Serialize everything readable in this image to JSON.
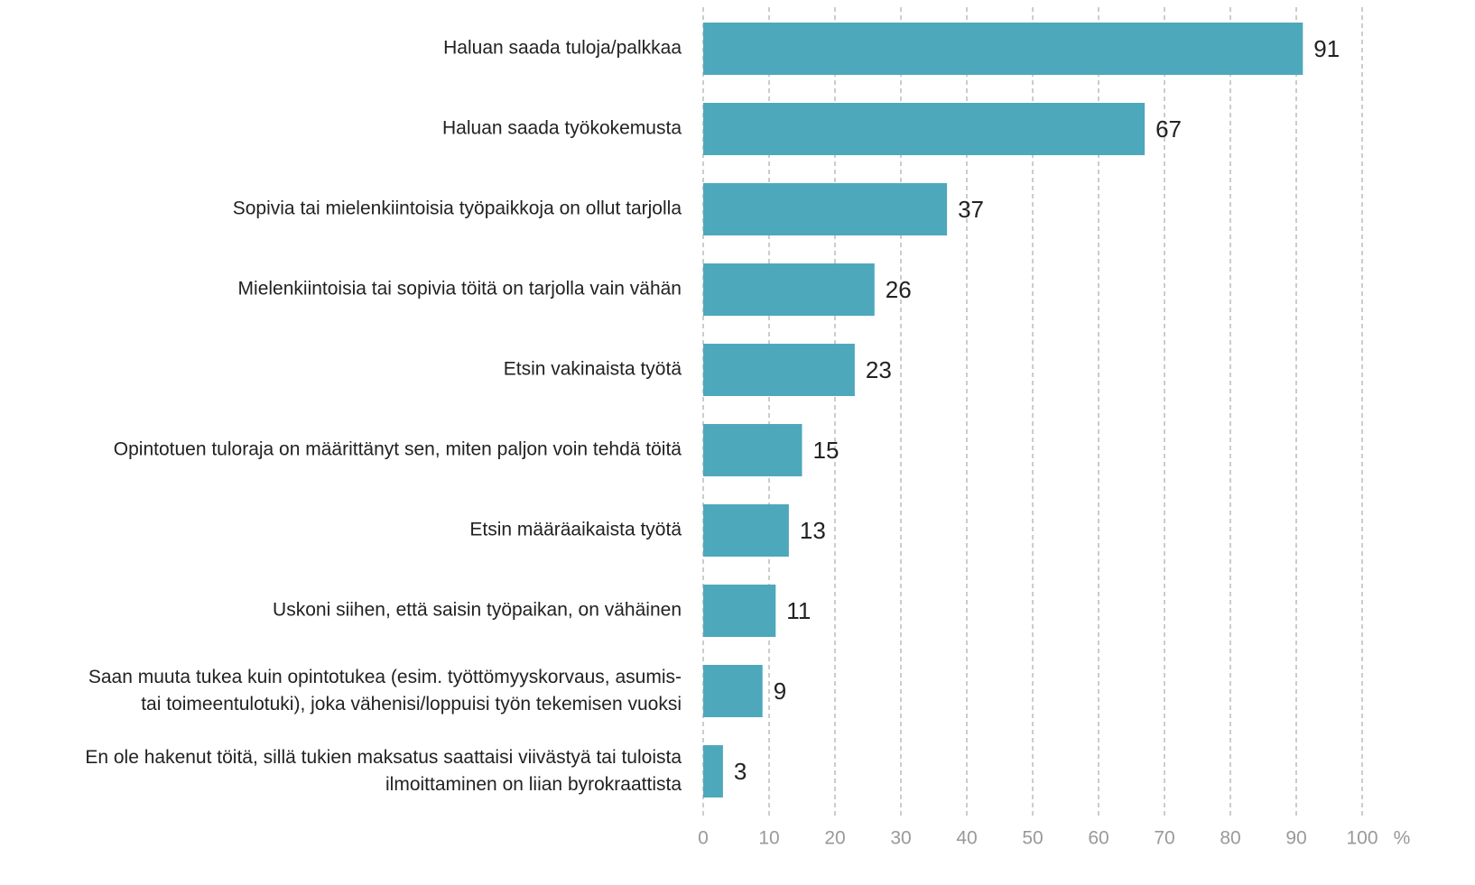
{
  "chart_data": {
    "type": "bar",
    "orientation": "horizontal",
    "categories": [
      "Haluan saada tuloja/palkkaa",
      "Haluan saada työkokemusta",
      "Sopivia tai mielenkiintoisia työpaikkoja on ollut tarjolla",
      "Mielenkiintoisia tai sopivia töitä on tarjolla vain vähän",
      "Etsin vakinaista työtä",
      "Opintotuen tuloraja on määrittänyt sen, miten paljon voin tehdä töitä",
      "Etsin määräaikaista työtä",
      "Uskoni siihen, että saisin työpaikan, on vähäinen",
      "Saan muuta tukea kuin opintotukea (esim. työttömyyskorvaus, asumis-\ntai toimeentulotuki), joka vähenisi/loppuisi työn tekemisen vuoksi",
      "En ole hakenut töitä, sillä tukien maksatus saattaisi viivästyä tai tuloista\nilmoittaminen on liian byrokraattista"
    ],
    "values": [
      91,
      67,
      37,
      26,
      23,
      15,
      13,
      11,
      9,
      3
    ],
    "color": "#4ea8bc",
    "xlabel": "%",
    "xlim": [
      0,
      100
    ],
    "xticks": [
      0,
      10,
      20,
      30,
      40,
      50,
      60,
      70,
      80,
      90,
      100
    ],
    "grid": true
  }
}
